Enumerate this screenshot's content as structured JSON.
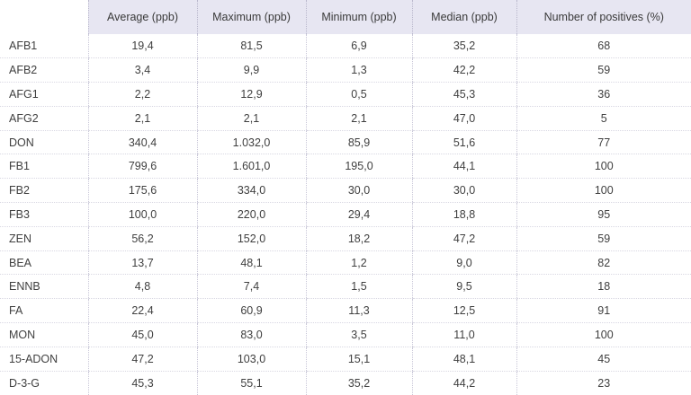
{
  "table": {
    "headers": [
      "",
      "Average (ppb)",
      "Maximum (ppb)",
      "Minimum (ppb)",
      "Median (ppb)",
      "Number of positives (%)"
    ],
    "rows": [
      [
        "AFB1",
        "19,4",
        "81,5",
        "6,9",
        "35,2",
        "68"
      ],
      [
        "AFB2",
        "3,4",
        "9,9",
        "1,3",
        "42,2",
        "59"
      ],
      [
        "AFG1",
        "2,2",
        "12,9",
        "0,5",
        "45,3",
        "36"
      ],
      [
        "AFG2",
        "2,1",
        "2,1",
        "2,1",
        "47,0",
        "5"
      ],
      [
        "DON",
        "340,4",
        "1.032,0",
        "85,9",
        "51,6",
        "77"
      ],
      [
        "FB1",
        "799,6",
        "1.601,0",
        "195,0",
        "44,1",
        "100"
      ],
      [
        "FB2",
        "175,6",
        "334,0",
        "30,0",
        "30,0",
        "100"
      ],
      [
        "FB3",
        "100,0",
        "220,0",
        "29,4",
        "18,8",
        "95"
      ],
      [
        "ZEN",
        "56,2",
        "152,0",
        "18,2",
        "47,2",
        "59"
      ],
      [
        "BEA",
        "13,7",
        "48,1",
        "1,2",
        "9,0",
        "82"
      ],
      [
        "ENNB",
        "4,8",
        "7,4",
        "1,5",
        "9,5",
        "18"
      ],
      [
        "FA",
        "22,4",
        "60,9",
        "11,3",
        "12,5",
        "91"
      ],
      [
        "MON",
        "45,0",
        "83,0",
        "3,5",
        "11,0",
        "100"
      ],
      [
        "15-ADON",
        "47,2",
        "103,0",
        "15,1",
        "48,1",
        "45"
      ],
      [
        "D-3-G",
        "45,3",
        "55,1",
        "35,2",
        "44,2",
        "23"
      ]
    ]
  },
  "colors": {
    "header_background": "#e7e6f2",
    "text": "#3a3a3a",
    "divider": "#c9c7d8"
  }
}
